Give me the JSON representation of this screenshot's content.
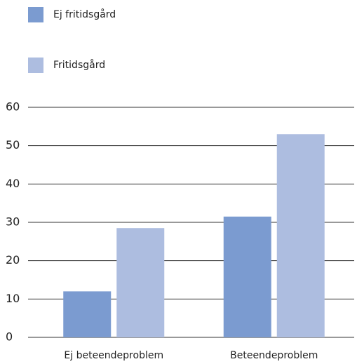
{
  "chart_data": {
    "type": "bar",
    "categories": [
      "Ej beteendeproblem",
      "Beteendeproblem"
    ],
    "series": [
      {
        "name": "Ej fritidsgård",
        "color": "#7b9bd0",
        "values": [
          12,
          31.5
        ]
      },
      {
        "name": "Fritidsgård",
        "color": "#adbde0",
        "values": [
          28.5,
          53
        ]
      }
    ],
    "ylim": [
      0,
      60
    ],
    "yticks": [
      0,
      10,
      20,
      30,
      40,
      50,
      60
    ],
    "grid": true
  }
}
